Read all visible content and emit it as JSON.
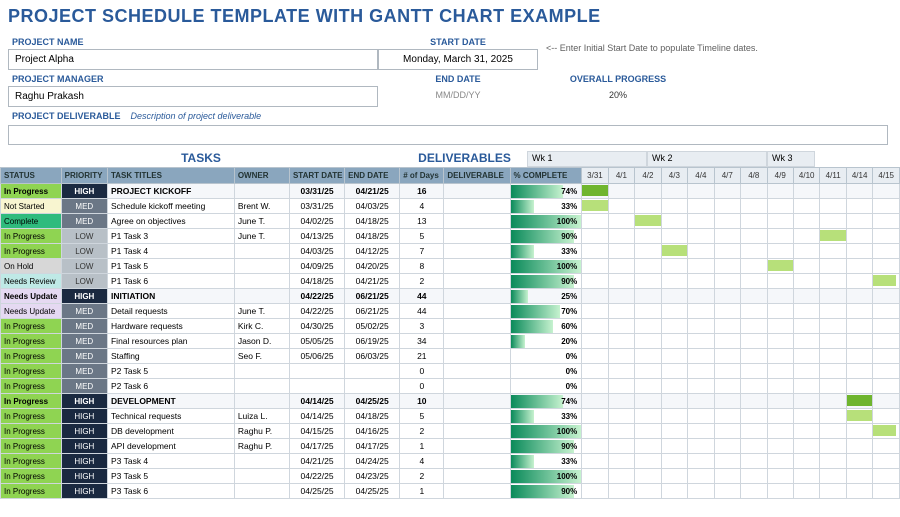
{
  "title": "PROJECT SCHEDULE TEMPLATE WITH GANTT CHART EXAMPLE",
  "meta": {
    "project_name_label": "PROJECT NAME",
    "project_name": "Project Alpha",
    "start_date_label": "START DATE",
    "start_date": "Monday, March 31, 2025",
    "hint": "<-- Enter Initial Start Date to populate Timeline dates.",
    "project_manager_label": "PROJECT MANAGER",
    "project_manager": "Raghu Prakash",
    "end_date_label": "END DATE",
    "end_date": "MM/DD/YY",
    "overall_progress_label": "OVERALL PROGRESS",
    "overall_progress": "20%",
    "deliverable_label": "PROJECT DELIVERABLE",
    "deliverable_hint": "Description of project deliverable"
  },
  "sections": {
    "tasks": "TASKS",
    "deliverables": "DELIVERABLES"
  },
  "weeks": [
    "Wk 1",
    "Wk 2",
    "Wk 3"
  ],
  "columns": {
    "status": "STATUS",
    "priority": "PRIORITY",
    "task": "TASK TITLES",
    "owner": "OWNER",
    "start": "START DATE",
    "end": "END DATE",
    "days": "# of Days",
    "deliverable": "DELIVERABLE",
    "pct": "% COMPLETE"
  },
  "date_cols": [
    "3/31",
    "4/1",
    "4/2",
    "4/3",
    "4/4",
    "4/7",
    "4/8",
    "4/9",
    "4/10",
    "4/11",
    "4/14",
    "4/15"
  ],
  "status_colors": {
    "In Progress": "#8fd452",
    "Not Started": "#f8f5d0",
    "Complete": "#2fbb7d",
    "On Hold": "#d7d7d7",
    "Needs Review": "#bfe9e6",
    "Needs Update": "#e5d9f2"
  },
  "pct_gradient": {
    "from": "#0a8a5a",
    "to": "#c6f2cf"
  },
  "gantt_colors": {
    "light": "#b7e07a",
    "dark": "#6fb52e"
  },
  "rows": [
    {
      "phase": true,
      "status": "In Progress",
      "priority": "HIGH",
      "task": "PROJECT KICKOFF",
      "owner": "",
      "start": "03/31/25",
      "end": "04/21/25",
      "days": "16",
      "pct": 74,
      "g": [
        0,
        12,
        "dark"
      ]
    },
    {
      "status": "Not Started",
      "priority": "MED",
      "task": "Schedule kickoff meeting",
      "owner": "Brent W.",
      "start": "03/31/25",
      "end": "04/03/25",
      "days": "4",
      "pct": 33,
      "g": [
        0,
        4,
        "light"
      ]
    },
    {
      "status": "Complete",
      "priority": "MED",
      "task": "Agree on objectives",
      "owner": "June T.",
      "start": "04/02/25",
      "end": "04/18/25",
      "days": "13",
      "pct": 100,
      "g": [
        2,
        10,
        "light"
      ]
    },
    {
      "status": "In Progress",
      "priority": "LOW",
      "task": "P1 Task 3",
      "owner": "June T.",
      "start": "04/13/25",
      "end": "04/18/25",
      "days": "5",
      "pct": 90,
      "g": [
        9,
        3,
        "light"
      ]
    },
    {
      "status": "In Progress",
      "priority": "LOW",
      "task": "P1 Task 4",
      "owner": "",
      "start": "04/03/25",
      "end": "04/12/25",
      "days": "7",
      "pct": 33,
      "g": [
        3,
        6,
        "light"
      ]
    },
    {
      "status": "On Hold",
      "priority": "LOW",
      "task": "P1 Task 5",
      "owner": "",
      "start": "04/09/25",
      "end": "04/20/25",
      "days": "8",
      "pct": 100,
      "g": [
        7,
        5,
        "light"
      ]
    },
    {
      "status": "Needs Review",
      "priority": "LOW",
      "task": "P1 Task 6",
      "owner": "",
      "start": "04/18/25",
      "end": "04/21/25",
      "days": "2",
      "pct": 90,
      "g": [
        11,
        1,
        "light"
      ]
    },
    {
      "phase": true,
      "status": "Needs Update",
      "priority": "HIGH",
      "task": "INITIATION",
      "owner": "",
      "start": "04/22/25",
      "end": "06/21/25",
      "days": "44",
      "pct": 25,
      "g": null
    },
    {
      "status": "Needs Update",
      "priority": "MED",
      "task": "Detail requests",
      "owner": "June T.",
      "start": "04/22/25",
      "end": "06/21/25",
      "days": "44",
      "pct": 70,
      "g": null
    },
    {
      "status": "In Progress",
      "priority": "MED",
      "task": "Hardware requests",
      "owner": "Kirk C.",
      "start": "04/30/25",
      "end": "05/02/25",
      "days": "3",
      "pct": 60,
      "g": null
    },
    {
      "status": "In Progress",
      "priority": "MED",
      "task": "Final resources plan",
      "owner": "Jason D.",
      "start": "05/05/25",
      "end": "06/19/25",
      "days": "34",
      "pct": 20,
      "g": null
    },
    {
      "status": "In Progress",
      "priority": "MED",
      "task": "Staffing",
      "owner": "Seo F.",
      "start": "05/06/25",
      "end": "06/03/25",
      "days": "21",
      "pct": 0,
      "g": null
    },
    {
      "status": "In Progress",
      "priority": "MED",
      "task": "P2 Task 5",
      "owner": "",
      "start": "",
      "end": "",
      "days": "0",
      "pct": 0,
      "g": null
    },
    {
      "status": "In Progress",
      "priority": "MED",
      "task": "P2 Task 6",
      "owner": "",
      "start": "",
      "end": "",
      "days": "0",
      "pct": 0,
      "g": null
    },
    {
      "phase": true,
      "status": "In Progress",
      "priority": "HIGH",
      "task": "DEVELOPMENT",
      "owner": "",
      "start": "04/14/25",
      "end": "04/25/25",
      "days": "10",
      "pct": 74,
      "g": [
        10,
        2,
        "dark"
      ]
    },
    {
      "status": "In Progress",
      "priority": "HIGH",
      "task": "Technical requests",
      "owner": "Luiza L.",
      "start": "04/14/25",
      "end": "04/18/25",
      "days": "5",
      "pct": 33,
      "g": [
        10,
        2,
        "light"
      ]
    },
    {
      "status": "In Progress",
      "priority": "HIGH",
      "task": "DB development",
      "owner": "Raghu P.",
      "start": "04/15/25",
      "end": "04/16/25",
      "days": "2",
      "pct": 100,
      "g": [
        11,
        1,
        "light"
      ]
    },
    {
      "status": "In Progress",
      "priority": "HIGH",
      "task": "API development",
      "owner": "Raghu P.",
      "start": "04/17/25",
      "end": "04/17/25",
      "days": "1",
      "pct": 90,
      "g": null
    },
    {
      "status": "In Progress",
      "priority": "HIGH",
      "task": "P3 Task 4",
      "owner": "",
      "start": "04/21/25",
      "end": "04/24/25",
      "days": "4",
      "pct": 33,
      "g": null
    },
    {
      "status": "In Progress",
      "priority": "HIGH",
      "task": "P3 Task 5",
      "owner": "",
      "start": "04/22/25",
      "end": "04/23/25",
      "days": "2",
      "pct": 100,
      "g": null
    },
    {
      "status": "In Progress",
      "priority": "HIGH",
      "task": "P3 Task 6",
      "owner": "",
      "start": "04/25/25",
      "end": "04/25/25",
      "days": "1",
      "pct": 90,
      "g": null
    }
  ],
  "col_widths": {
    "status": 55,
    "priority": 42,
    "task": 115,
    "owner": 50,
    "start": 50,
    "end": 50,
    "days": 40,
    "deliverable": 60,
    "pct": 65,
    "date": 24
  }
}
